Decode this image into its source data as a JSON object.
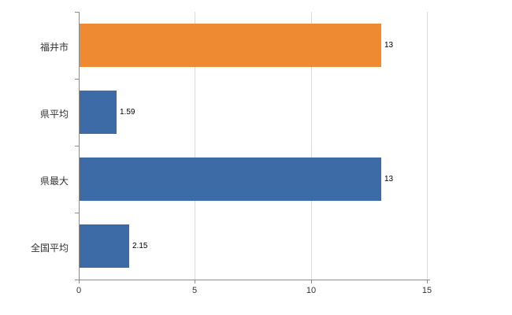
{
  "chart_data": {
    "type": "bar",
    "orientation": "horizontal",
    "title": "",
    "xlabel": "",
    "ylabel": "",
    "categories": [
      "福井市",
      "県平均",
      "県最大",
      "全国平均"
    ],
    "values": [
      13,
      1.59,
      13,
      2.15
    ],
    "value_labels": [
      "13",
      "1.59",
      "13",
      "2.15"
    ],
    "bar_colors": [
      "#ee8a31",
      "#3d6ba5",
      "#3d6ba5",
      "#3d6ba5"
    ],
    "xlim": [
      0,
      15.1
    ],
    "x_ticks": [
      0,
      5,
      10,
      15
    ],
    "x_tick_labels": [
      "0",
      "5",
      "10",
      "15"
    ],
    "grid": true,
    "legend": "none",
    "colors": {
      "highlight_bar": "#ee8a31",
      "default_bar": "#3d6ba5",
      "gridline": "#d9d9d9",
      "axis": "#8c8c8c",
      "label_text": "#333333",
      "value_text": "#000000",
      "background": "#ffffff"
    }
  }
}
